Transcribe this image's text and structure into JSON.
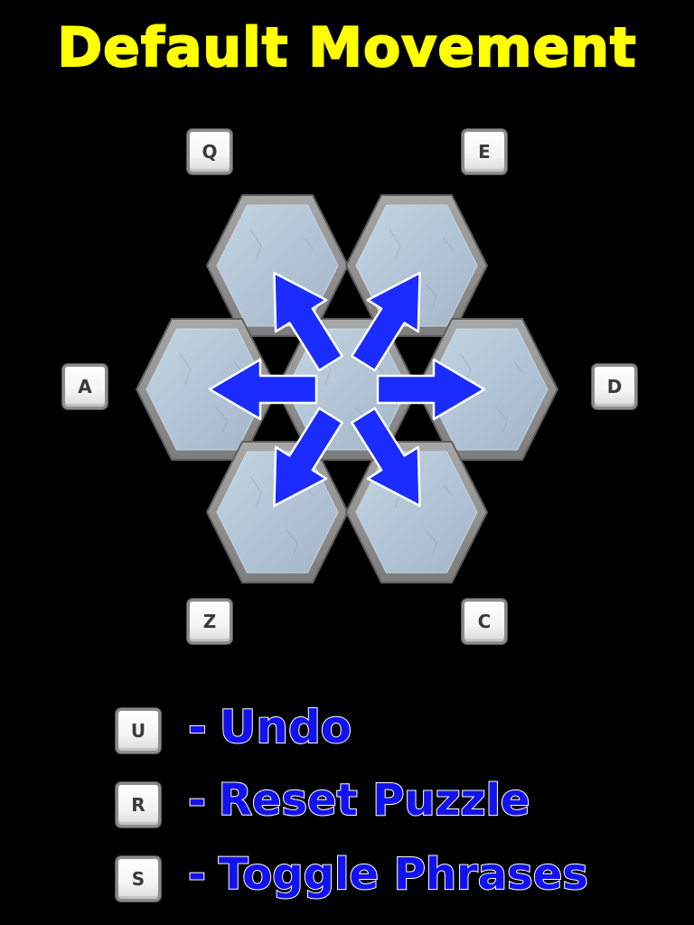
{
  "title": "Default Movement",
  "keys": {
    "up_left": "Q",
    "up_right": "E",
    "left": "A",
    "right": "D",
    "down_left": "Z",
    "down_right": "C"
  },
  "commands": [
    {
      "key": "U",
      "dash": "-",
      "label": "Undo"
    },
    {
      "key": "R",
      "dash": "-",
      "label": "Reset Puzzle"
    },
    {
      "key": "S",
      "dash": "-",
      "label": "Toggle Phrases"
    }
  ],
  "colors": {
    "title": "#ffff00",
    "arrow": "#1a2cff",
    "hex_face": "#b4c6d6",
    "hex_border": "#8a8a8a",
    "legend_text": "#1212ee"
  }
}
